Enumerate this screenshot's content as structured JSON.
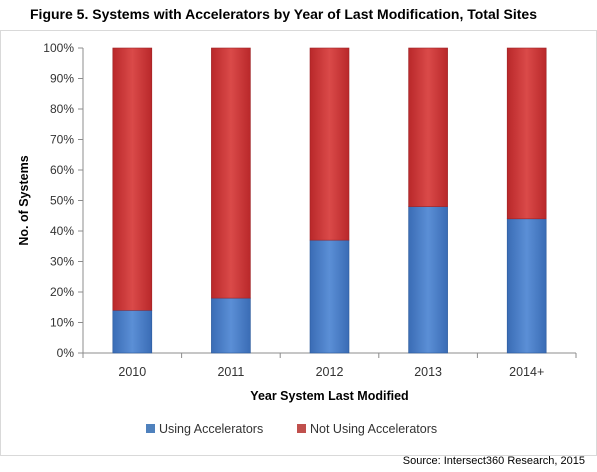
{
  "title": "Figure 5. Systems with Accelerators by Year of Last Modification, Total Sites",
  "source": "Source: Intersect360 Research, 2015",
  "chart_data": {
    "type": "bar",
    "stacked": true,
    "title": "",
    "xlabel": "Year System Last Modified",
    "ylabel": "No. of Systems",
    "categories": [
      "2010",
      "2011",
      "2012",
      "2013",
      "2014+"
    ],
    "ylim": [
      0,
      100
    ],
    "yticks": [
      "0%",
      "10%",
      "20%",
      "30%",
      "40%",
      "50%",
      "60%",
      "70%",
      "80%",
      "90%",
      "100%"
    ],
    "grid": false,
    "legend_position": "bottom",
    "series": [
      {
        "name": "Using Accelerators",
        "color": "#4f81bd",
        "values": [
          14,
          18,
          37,
          48,
          44
        ]
      },
      {
        "name": "Not Using Accelerators",
        "color": "#c0504d",
        "values": [
          86,
          82,
          63,
          52,
          56
        ]
      }
    ]
  }
}
